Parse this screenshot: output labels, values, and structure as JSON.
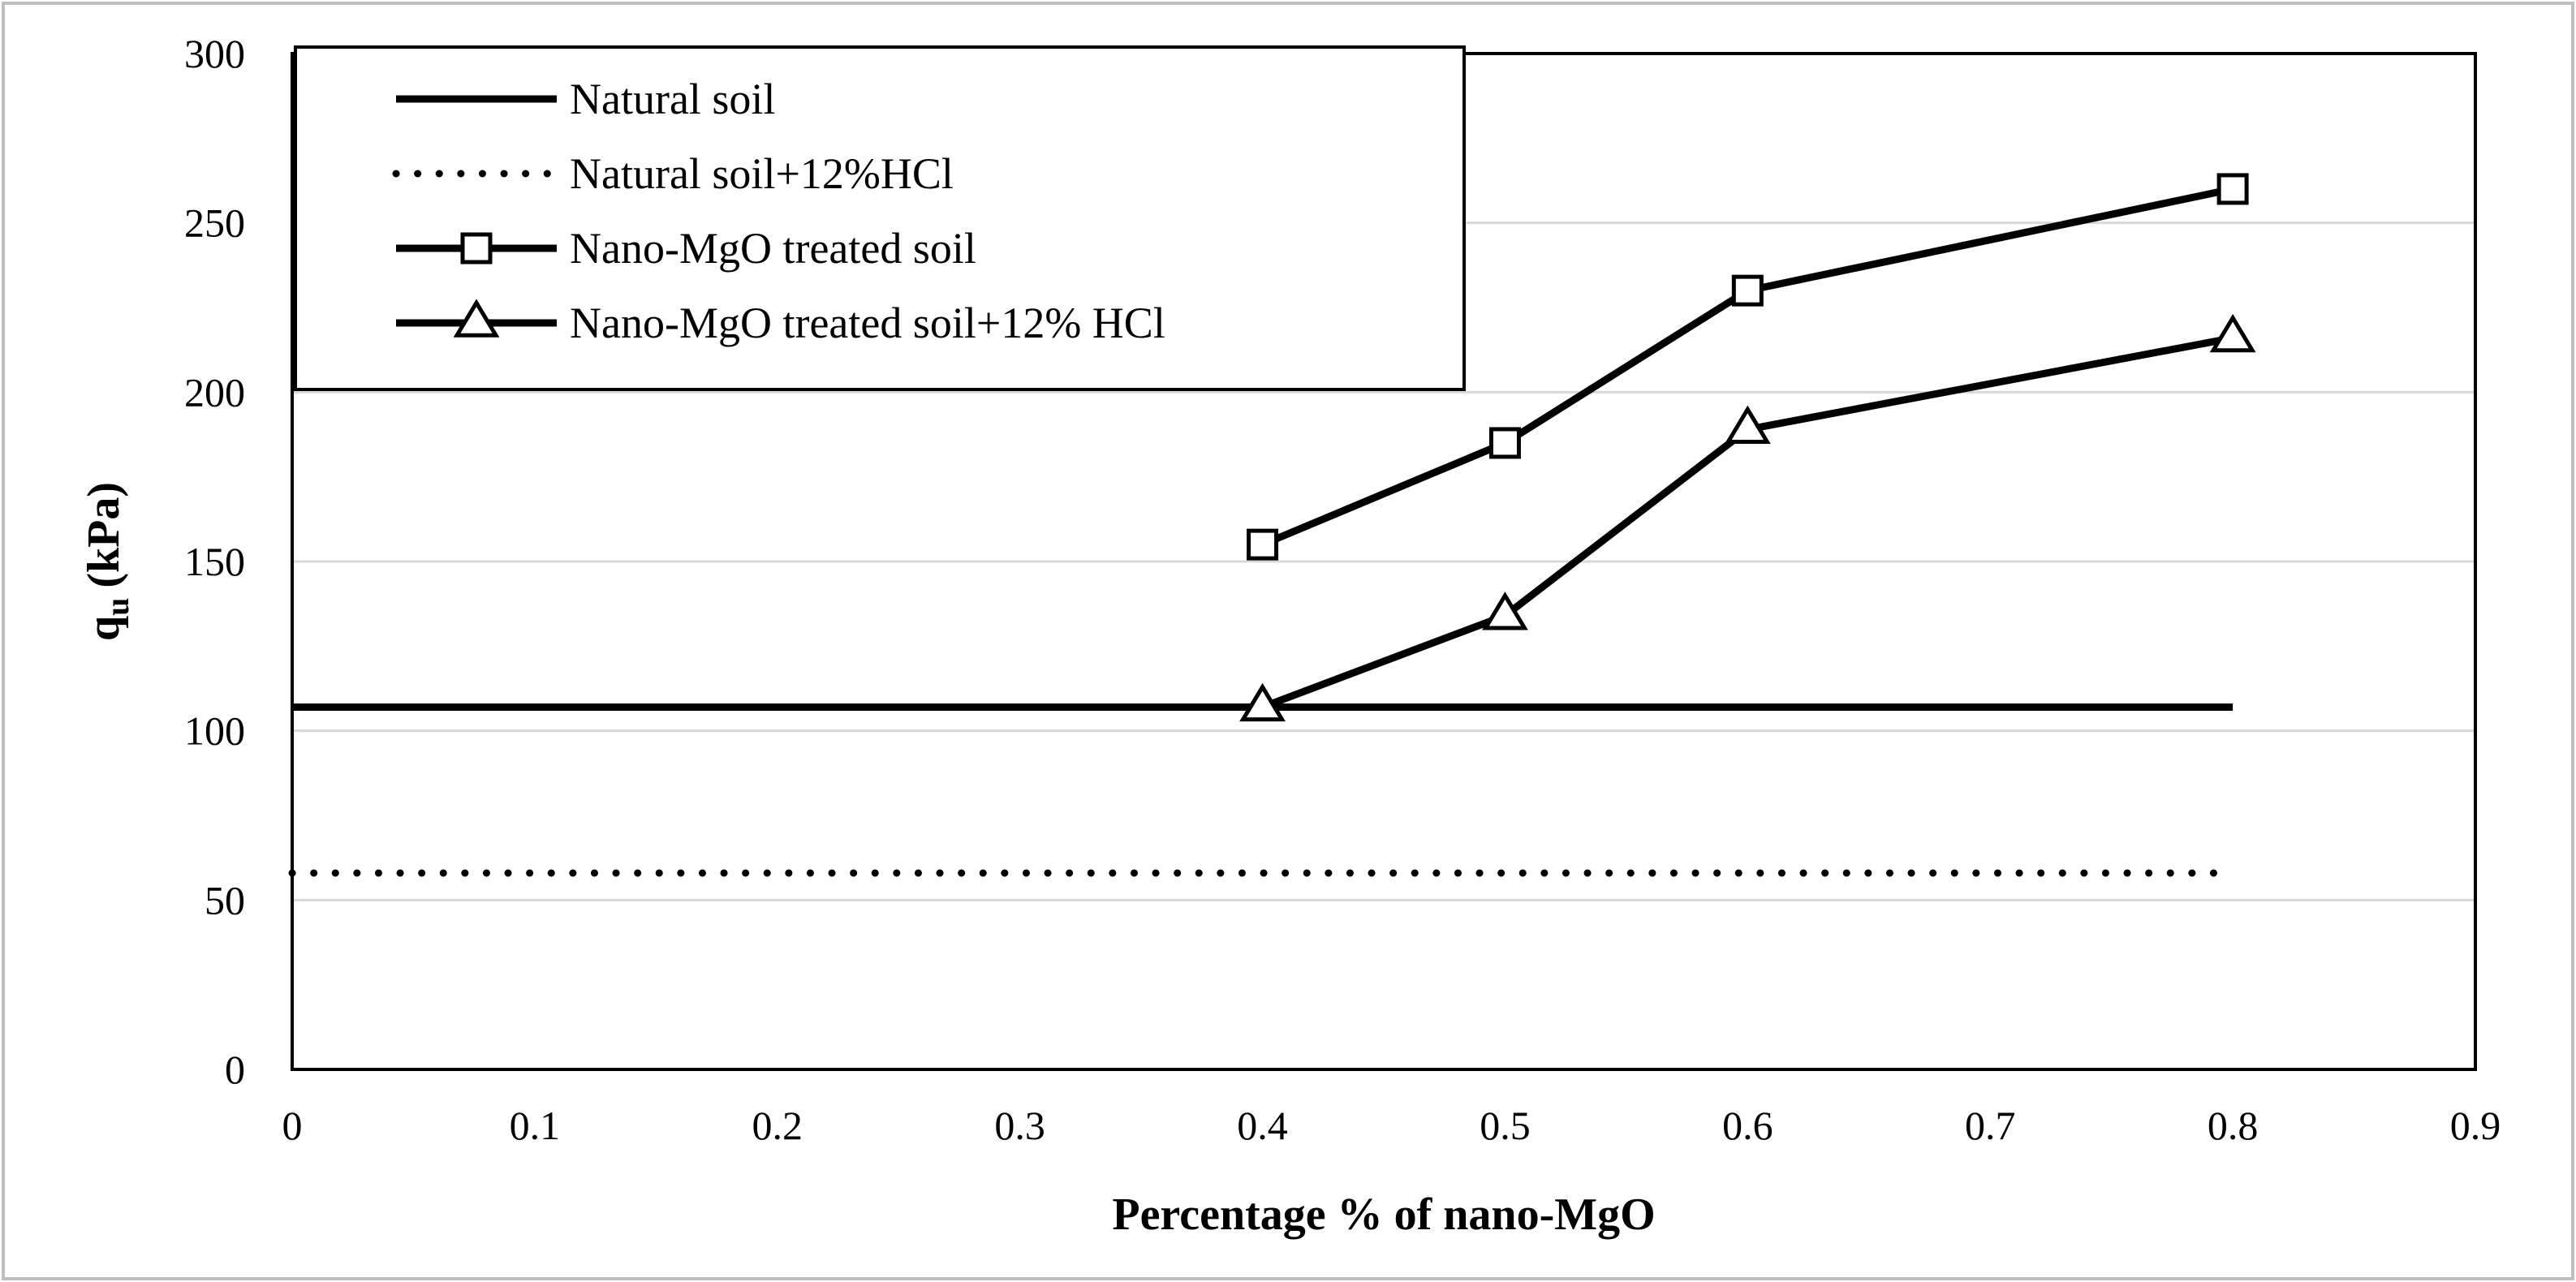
{
  "chart_data": {
    "type": "line",
    "title": "",
    "xlabel": "Percentage % of nano-MgO",
    "ylabel_main": "q",
    "ylabel_sub": "u",
    "ylabel_unit": "(kPa)",
    "xlim": [
      0,
      0.9
    ],
    "ylim": [
      0,
      300
    ],
    "xticks": [
      0,
      0.1,
      0.2,
      0.3,
      0.4,
      0.5,
      0.6,
      0.7,
      0.8,
      0.9
    ],
    "yticks": [
      0,
      50,
      100,
      150,
      200,
      250,
      300
    ],
    "xtick_labels": [
      "0",
      "0.1",
      "0.2",
      "0.3",
      "0.4",
      "0.5",
      "0.6",
      "0.7",
      "0.8",
      "0.9"
    ],
    "ytick_labels": [
      "0",
      "50",
      "100",
      "150",
      "200",
      "250",
      "300"
    ],
    "grid": "horizontal",
    "legend_position": "top-left",
    "series": [
      {
        "name": "Natural soil",
        "style": "solid",
        "marker": "none",
        "x": [
          0,
          0.8
        ],
        "values": [
          107,
          107
        ]
      },
      {
        "name": "Natural soil+12%HCl",
        "style": "dotted",
        "marker": "none",
        "x": [
          0,
          0.8
        ],
        "values": [
          58,
          58
        ]
      },
      {
        "name": "Nano-MgO treated soil",
        "style": "solid",
        "marker": "square",
        "x": [
          0.4,
          0.5,
          0.6,
          0.8
        ],
        "values": [
          155,
          185,
          230,
          260
        ]
      },
      {
        "name": "Nano-MgO treated soil+12% HCl",
        "style": "solid",
        "marker": "triangle",
        "x": [
          0.4,
          0.5,
          0.6,
          0.8
        ],
        "values": [
          107,
          134,
          189,
          216
        ]
      }
    ],
    "colors": {
      "line": "#000000",
      "grid": "#d9d9d9",
      "frame": "#000000",
      "outer_border": "#bfbfbf"
    }
  }
}
